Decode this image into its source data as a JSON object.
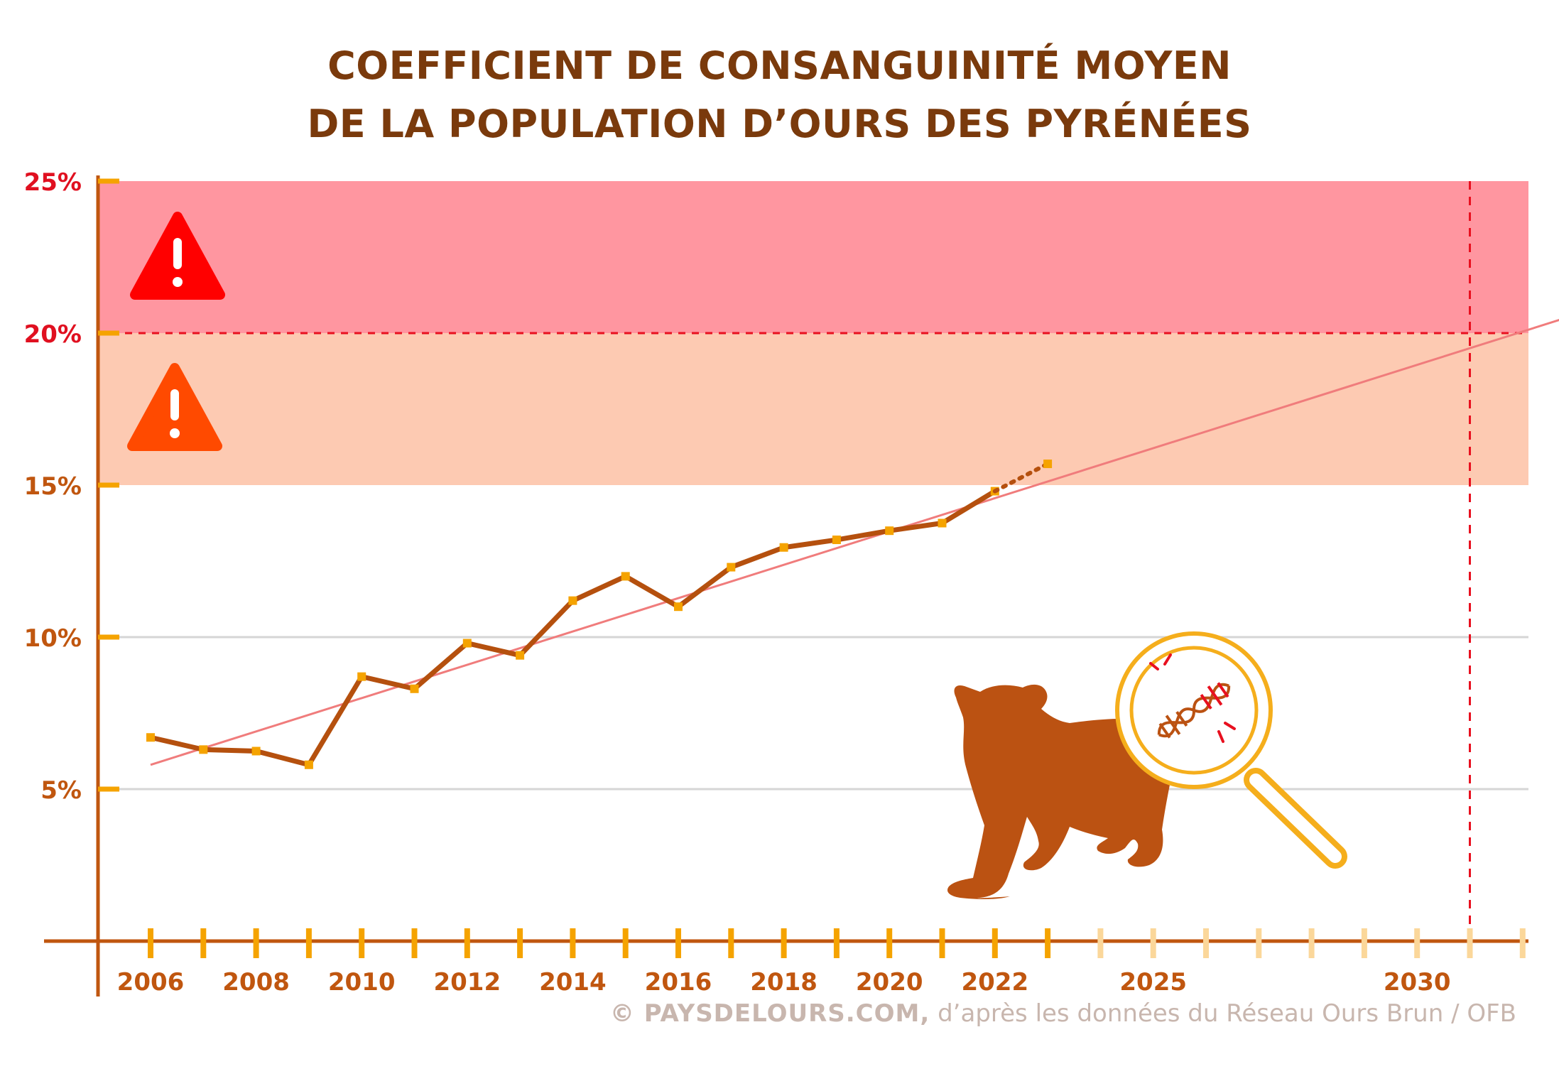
{
  "title_line1": "COEFFICIENT DE CONSANGUINITÉ MOYEN",
  "title_line2": "DE LA POPULATION D’OURS DES PYRÉNÉES",
  "credit_brand": "© PAYSDELOURS.COM,",
  "credit_rest": "d’après les données du Réseau Ours Brun / OFB",
  "colors": {
    "title": "#7a3a0c",
    "line": "#b5500e",
    "marker": "#f5a300",
    "trend": "#f07c7c",
    "danger_zone": "#ff96a0",
    "warning_zone": "#fdcab2",
    "threshold": "#e8101f",
    "axis": "#c0560f",
    "y_label_red": "#e01020",
    "y_label_orange": "#c0560f",
    "grid": "#d6d6d6",
    "bear": "#bb5212",
    "magnifier": "#f5ae1c"
  },
  "icons": [
    "warning-triangle-red-icon",
    "warning-triangle-orange-icon",
    "bear-silhouette-icon",
    "dna-magnifier-icon"
  ],
  "chart_data": {
    "type": "line",
    "xlim": [
      2006,
      2033
    ],
    "ylim": [
      0,
      25
    ],
    "x_tick_labels": [
      2006,
      2008,
      2010,
      2012,
      2014,
      2016,
      2018,
      2020,
      2022,
      2025,
      2030
    ],
    "x_tick_marks": [
      2006,
      2007,
      2008,
      2009,
      2010,
      2011,
      2012,
      2013,
      2014,
      2015,
      2016,
      2017,
      2018,
      2019,
      2020,
      2021,
      2022,
      2023,
      2024,
      2025,
      2026,
      2027,
      2028,
      2029,
      2030,
      2031,
      2032,
      2033
    ],
    "y_ticks": [
      {
        "value": 25,
        "label": "25%"
      },
      {
        "value": 20,
        "label": "20%"
      },
      {
        "value": 15,
        "label": "15%"
      },
      {
        "value": 10,
        "label": "10%"
      },
      {
        "value": 5,
        "label": "5%"
      }
    ],
    "grid": "horizontal",
    "series": [
      {
        "x": [
          2006,
          2007,
          2008,
          2009,
          2010,
          2011,
          2012,
          2013,
          2014,
          2015,
          2016,
          2017,
          2018,
          2019,
          2020,
          2021,
          2022
        ],
        "y": [
          6.7,
          6.3,
          6.25,
          5.8,
          8.7,
          8.3,
          9.8,
          9.4,
          11.2,
          12.0,
          11.0,
          12.3,
          12.95,
          13.2,
          13.5,
          13.75,
          14.8
        ]
      },
      {
        "style": "dotted",
        "x": [
          2022,
          2023
        ],
        "y": [
          14.8,
          15.7
        ]
      }
    ],
    "trend_line": {
      "x": [
        2006,
        2033
      ],
      "y": [
        5.8,
        20.6
      ]
    },
    "bands": [
      {
        "from": 20,
        "to": 25,
        "level": "danger"
      },
      {
        "from": 15,
        "to": 20,
        "level": "warning"
      }
    ],
    "thresholds": {
      "y": 20,
      "x": 2031
    }
  }
}
